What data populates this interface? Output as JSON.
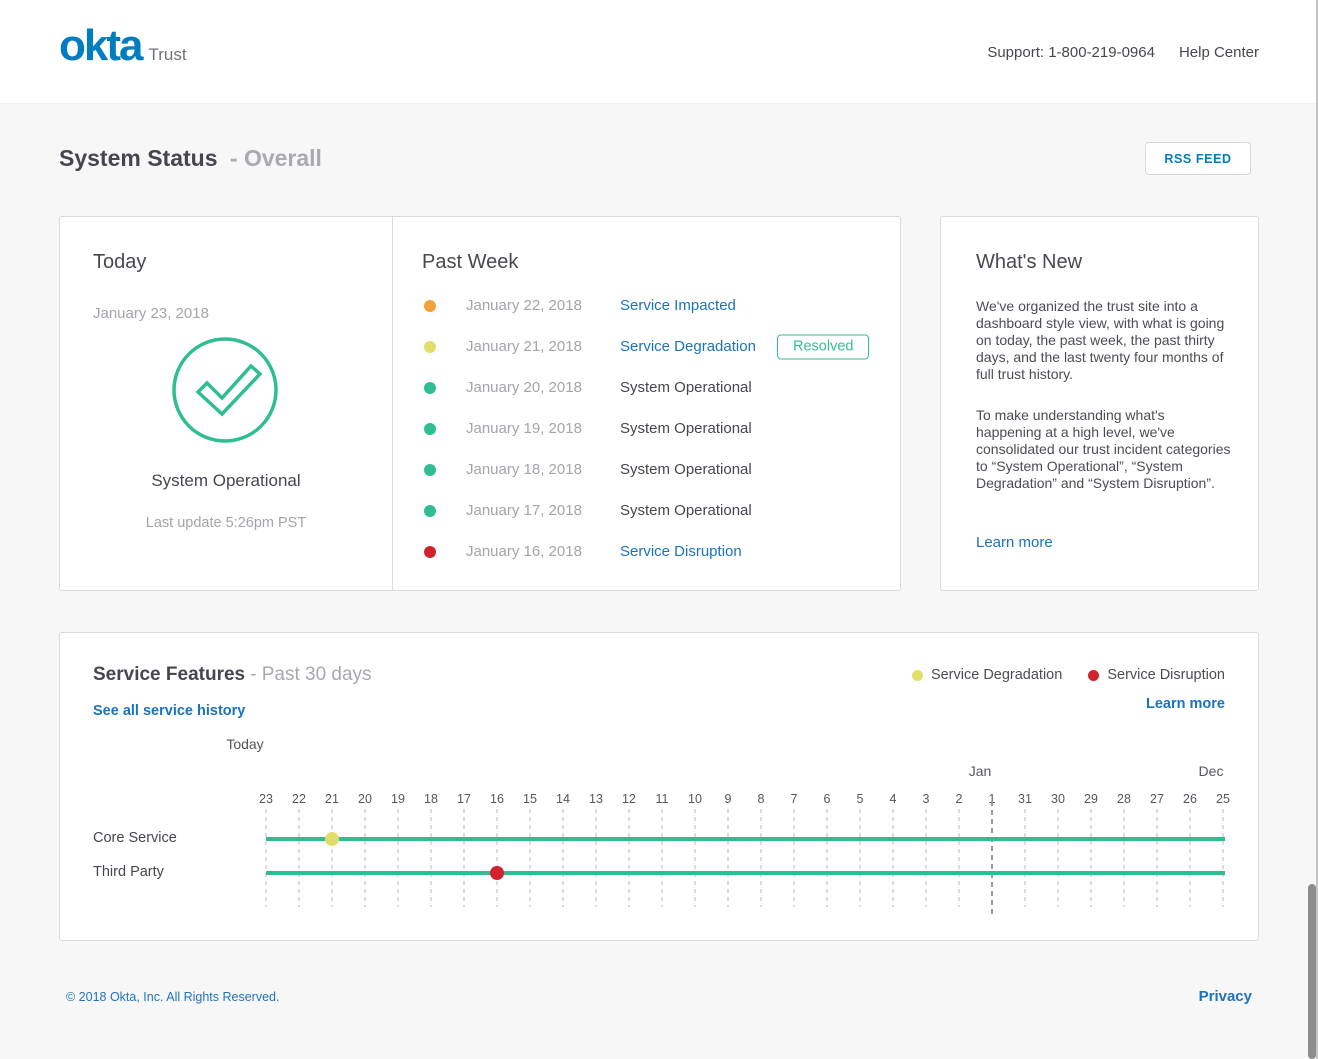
{
  "header": {
    "logo": "okta",
    "logo_suffix": "Trust",
    "support": "Support: 1-800-219-0964",
    "help_center": "Help Center"
  },
  "page": {
    "title": "System Status",
    "subtitle": "- Overall",
    "rss_button": "RSS FEED"
  },
  "today_card": {
    "title": "Today",
    "date": "January 23, 2018",
    "status": "System Operational",
    "status_icon": "check-circle",
    "last_update": "Last update 5:26pm PST"
  },
  "past_week": {
    "title": "Past Week",
    "rows": [
      {
        "date": "January 22, 2018",
        "status": "Service Impacted",
        "type": "impacted",
        "link": true,
        "badge": null
      },
      {
        "date": "January 21, 2018",
        "status": "Service Degradation",
        "type": "degradation",
        "link": true,
        "badge": "Resolved"
      },
      {
        "date": "January 20, 2018",
        "status": "System Operational",
        "type": "operational",
        "link": false,
        "badge": null
      },
      {
        "date": "January 19, 2018",
        "status": "System Operational",
        "type": "operational",
        "link": false,
        "badge": null
      },
      {
        "date": "January 18, 2018",
        "status": "System Operational",
        "type": "operational",
        "link": false,
        "badge": null
      },
      {
        "date": "January 17, 2018",
        "status": "System Operational",
        "type": "operational",
        "link": false,
        "badge": null
      },
      {
        "date": "January 16, 2018",
        "status": "Service Disruption",
        "type": "disruption",
        "link": true,
        "badge": null
      }
    ]
  },
  "whats_new": {
    "title": "What's New",
    "p1": "We've organized the trust site into a dashboard style view, with what is going on today, the past week, the past thirty days, and the last twenty four months of full trust history.",
    "p2": "To make understanding what's happening at a high level, we've consolidated our trust incident categories to “System Operational”, “System Degradation” and “System Disruption”.",
    "learn_more": "Learn more"
  },
  "service_features": {
    "title": "Service Features",
    "subtitle": "- Past 30 days",
    "see_all": "See all service history",
    "learn_more": "Learn more"
  },
  "chart_data": {
    "type": "timeline",
    "title": "Service Features - Past 30 days",
    "today_label": "Today",
    "day_ticks": [
      "23",
      "22",
      "21",
      "20",
      "19",
      "18",
      "17",
      "16",
      "15",
      "14",
      "13",
      "12",
      "11",
      "10",
      "9",
      "8",
      "7",
      "6",
      "5",
      "4",
      "3",
      "2",
      "1",
      "31",
      "30",
      "29",
      "28",
      "27",
      "26",
      "25"
    ],
    "month_labels": [
      {
        "label": "Jan",
        "tick_index": 22
      },
      {
        "label": "Dec",
        "tick_index": 29
      }
    ],
    "month_boundary_tick_index": 22,
    "rows": [
      {
        "label": "Core Service",
        "baseline_status": "operational",
        "incidents": [
          {
            "day": "21",
            "tick_index": 2,
            "type": "degradation"
          }
        ]
      },
      {
        "label": "Third Party",
        "baseline_status": "operational",
        "incidents": [
          {
            "day": "16",
            "tick_index": 7,
            "type": "disruption"
          }
        ]
      }
    ],
    "legend": [
      {
        "label": "Service Degradation",
        "type": "degradation"
      },
      {
        "label": "Service Disruption",
        "type": "disruption"
      }
    ]
  },
  "footer": {
    "copyright": "© 2018 Okta, Inc. All Rights Reserved.",
    "privacy": "Privacy"
  },
  "colors": {
    "brand_blue": "#007dc1",
    "link_blue": "#1a73bd",
    "operational": "#2fbe92",
    "impacted": "#f6a03c",
    "degradation": "#e0dd6b",
    "disruption": "#d2222d",
    "dark_text": "#46464f",
    "gray_text": "#a4a4aa"
  }
}
